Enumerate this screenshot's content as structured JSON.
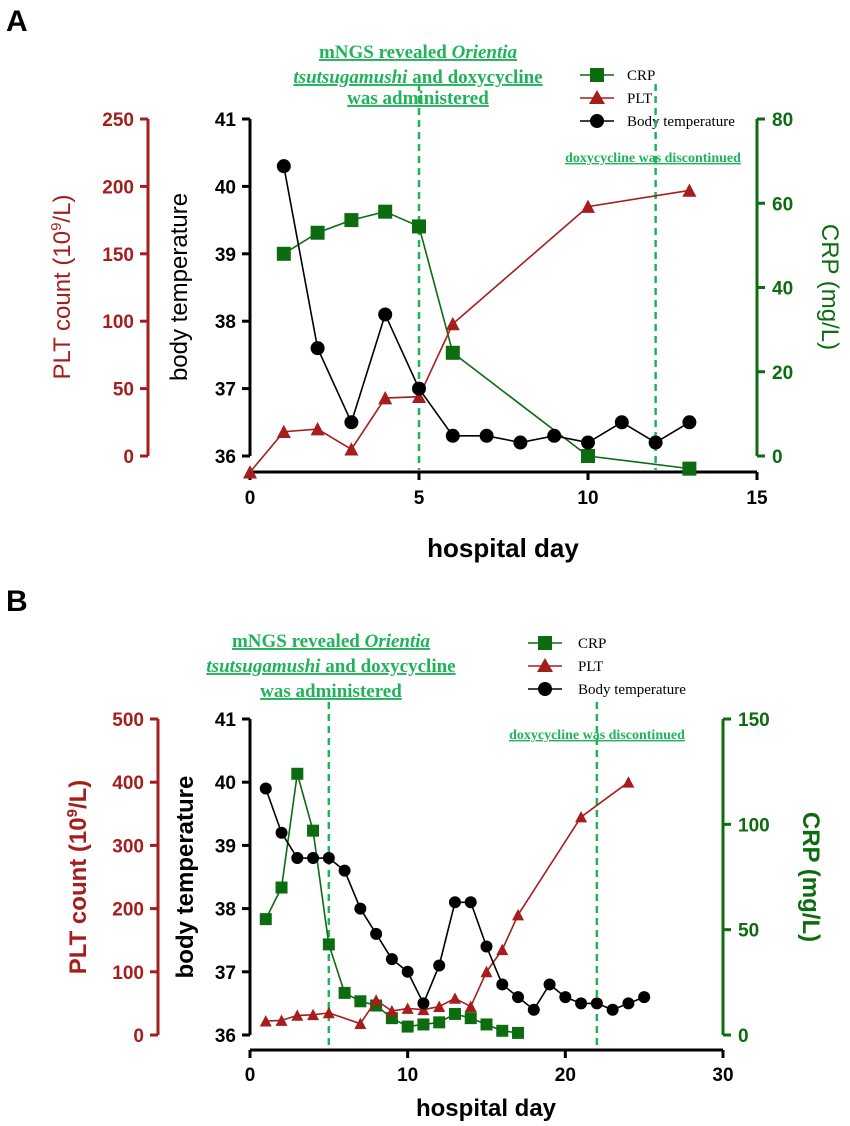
{
  "colors": {
    "plt": "#a61d1d",
    "crp": "#0d6b10",
    "temp": "#000000",
    "annot": "#1fb35a"
  },
  "icons": {
    "crp": "square-marker-icon",
    "plt": "triangle-marker-icon",
    "temp": "circle-marker-icon"
  },
  "chart_data": [
    {
      "panel": "A",
      "type": "line",
      "xlabel": "hospital day",
      "xlim": [
        0,
        15
      ],
      "xticks": [
        "0",
        "5",
        "10",
        "15"
      ],
      "left_axis": {
        "label_main": "PLT count (10",
        "label_sup": "9",
        "label_end": "/L)",
        "ylim": [
          0,
          250
        ],
        "ticks": [
          "0",
          "50",
          "100",
          "150",
          "200",
          "250"
        ]
      },
      "mid_axis": {
        "label": "body temperature",
        "ylim": [
          36,
          41
        ],
        "ticks": [
          "36",
          "37",
          "38",
          "39",
          "40",
          "41"
        ]
      },
      "right_axis": {
        "label": "CRP (mg/L)",
        "ylim": [
          0,
          80
        ],
        "ticks": [
          "0",
          "20",
          "40",
          "60",
          "80"
        ]
      },
      "legend": [
        "CRP",
        "PLT",
        "Body temperature"
      ],
      "annotation_admin": {
        "line1_prefix": "mNGS revealed ",
        "line1_italic": "Orientia",
        "line2_italic": "tsutsugamushi",
        "line2_suffix": " and doxycycline",
        "line3": "was administered",
        "x": 5
      },
      "annotation_stop": {
        "text": "doxycycline was discontinued",
        "x": 12
      },
      "series": [
        {
          "name": "Body temperature",
          "x": [
            1,
            2,
            3,
            4,
            5,
            6,
            7,
            8,
            9,
            10,
            11,
            12,
            13
          ],
          "y": [
            40.3,
            37.6,
            36.5,
            38.1,
            37.0,
            36.3,
            36.3,
            36.2,
            36.3,
            36.2,
            36.5,
            36.2,
            36.5
          ]
        },
        {
          "name": "PLT",
          "x": [
            0,
            1,
            2,
            3,
            4,
            5,
            6,
            10,
            13
          ],
          "y": [
            -12,
            18,
            20,
            5,
            43,
            44,
            98,
            185,
            197
          ]
        },
        {
          "name": "CRP",
          "x": [
            1,
            2,
            3,
            4,
            5,
            6,
            10,
            13
          ],
          "y": [
            48,
            53,
            56,
            58,
            54.5,
            24.5,
            0,
            -3
          ]
        }
      ]
    },
    {
      "panel": "B",
      "type": "line",
      "xlabel": "hospital day",
      "xlim": [
        0,
        30
      ],
      "xticks": [
        "0",
        "10",
        "20",
        "30"
      ],
      "left_axis": {
        "label_main": "PLT count (10",
        "label_sup": "9",
        "label_end": "/L)",
        "ylim": [
          0,
          500
        ],
        "ticks": [
          "0",
          "100",
          "200",
          "300",
          "400",
          "500"
        ]
      },
      "mid_axis": {
        "label": "body temperature",
        "ylim": [
          36,
          41
        ],
        "ticks": [
          "36",
          "37",
          "38",
          "39",
          "40",
          "41"
        ]
      },
      "right_axis": {
        "label": "CRP (mg/L)",
        "ylim": [
          0,
          150
        ],
        "ticks": [
          "0",
          "50",
          "100",
          "150"
        ]
      },
      "legend": [
        "CRP",
        "PLT",
        "Body temperature"
      ],
      "annotation_admin": {
        "line1_prefix": "mNGS revealed ",
        "line1_italic": "Orientia",
        "line2_italic": "tsutsugamushi",
        "line2_suffix": " and doxycycline",
        "line3": "was administered",
        "x": 5
      },
      "annotation_stop": {
        "text": "doxycycline was discontinued",
        "x": 22
      },
      "series": [
        {
          "name": "Body temperature",
          "x": [
            1,
            2,
            3,
            4,
            5,
            6,
            7,
            8,
            9,
            10,
            11,
            12,
            13,
            14,
            15,
            16,
            17,
            18,
            19,
            20,
            21,
            22,
            23,
            24,
            25
          ],
          "y": [
            39.9,
            39.2,
            38.8,
            38.8,
            38.8,
            38.6,
            38.0,
            37.6,
            37.2,
            37.0,
            36.5,
            37.1,
            38.1,
            38.1,
            37.4,
            36.8,
            36.6,
            36.4,
            36.8,
            36.6,
            36.5,
            36.5,
            36.4,
            36.5,
            36.6
          ]
        },
        {
          "name": "PLT",
          "x": [
            1,
            2,
            3,
            4,
            5,
            7,
            8,
            9,
            10,
            11,
            12,
            13,
            14,
            15,
            16,
            17,
            21,
            24
          ],
          "y": [
            22,
            23,
            31,
            32,
            35,
            18,
            55,
            38,
            42,
            40,
            45,
            58,
            45,
            100,
            135,
            190,
            345,
            400
          ]
        },
        {
          "name": "CRP",
          "x": [
            1,
            2,
            3,
            4,
            5,
            6,
            7,
            8,
            9,
            10,
            11,
            12,
            13,
            14,
            15,
            16,
            17
          ],
          "y": [
            55,
            70,
            124,
            97,
            43,
            20,
            16,
            14,
            8,
            4,
            5,
            6,
            10,
            8,
            5,
            2,
            1
          ]
        }
      ]
    }
  ]
}
